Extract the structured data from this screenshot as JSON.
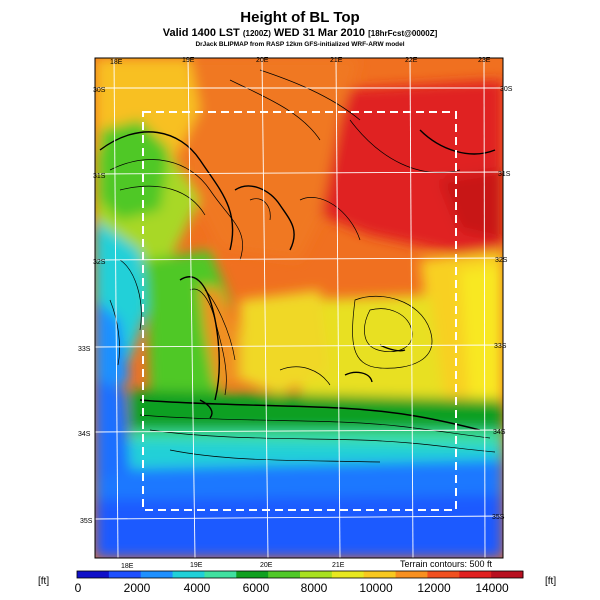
{
  "header": {
    "title": "Height of BL Top",
    "subtitle_main": "Valid 1400 LST",
    "subtitle_paren": "(1200Z)",
    "subtitle_date": "WED 31 Mar 2010",
    "subtitle_bracket": "[18hrFcst@0000Z]",
    "credit": "DrJack BLIPMAP from RASP 12km GFS-initialized WRF-ARW model"
  },
  "map": {
    "top_longitudes": [
      "18E",
      "19E",
      "20E",
      "21E",
      "22E",
      "23E"
    ],
    "bottom_longitudes": [
      "18E",
      "19E",
      "20E",
      "21E"
    ],
    "left_latitudes": [
      "30S",
      "31S",
      "32S",
      "33S",
      "34S",
      "35S"
    ],
    "right_latitudes": [
      "30S",
      "31S",
      "32S",
      "33S",
      "34S",
      "35S"
    ],
    "terrain_note": "Terrain contours: 500 ft"
  },
  "colorbar": {
    "unit_left": "[ft]",
    "unit_right": "[ft]",
    "tick_labels": [
      "0",
      "2000",
      "4000",
      "6000",
      "8000",
      "10000",
      "12000",
      "14000"
    ],
    "colors": [
      "#1010c8",
      "#1e50ff",
      "#1e90ff",
      "#20d0d8",
      "#40e0a0",
      "#10a020",
      "#50c828",
      "#a8e020",
      "#e8e820",
      "#f8c820",
      "#f89020",
      "#f05020",
      "#e02020",
      "#b81020"
    ]
  }
}
